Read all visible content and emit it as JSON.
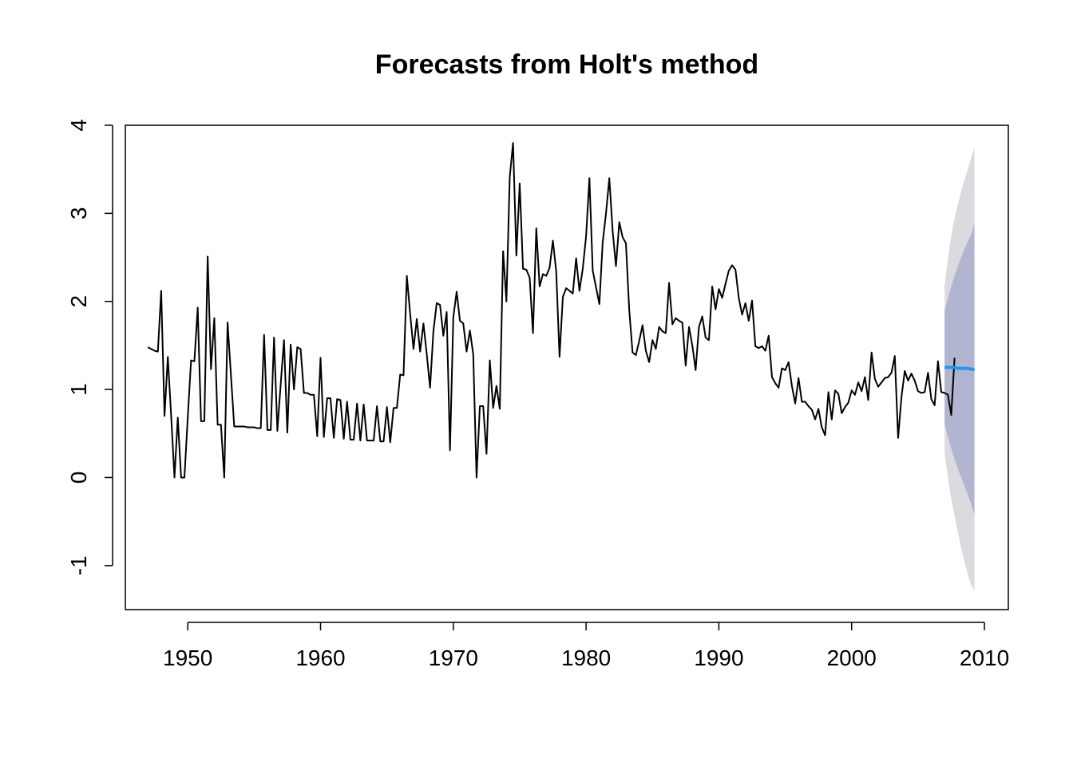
{
  "chart_data": {
    "type": "line",
    "title": "Forecasts from Holt's method",
    "xlabel": "",
    "ylabel": "",
    "xlim": [
      1945.3,
      2011.8
    ],
    "ylim": [
      -1.5,
      4.0
    ],
    "x_ticks": [
      1950,
      1960,
      1970,
      1980,
      1990,
      2000,
      2010
    ],
    "y_ticks": [
      -1,
      0,
      1,
      2,
      3,
      4
    ],
    "grid": false,
    "series": [
      {
        "role": "observed",
        "color": "#000000",
        "start": 1947.0,
        "frequency": 4,
        "values": [
          1.48,
          1.46,
          1.44,
          1.43,
          2.12,
          0.7,
          1.37,
          0.7,
          0.0,
          0.68,
          0.0,
          0.0,
          0.68,
          1.33,
          1.32,
          1.93,
          0.64,
          0.64,
          2.51,
          1.23,
          1.81,
          0.6,
          0.6,
          0.0,
          1.76,
          1.17,
          0.58,
          0.58,
          0.58,
          0.58,
          0.57,
          0.57,
          0.57,
          0.56,
          0.56,
          1.62,
          0.54,
          0.54,
          1.59,
          0.53,
          1.06,
          1.56,
          0.51,
          1.51,
          1.0,
          1.48,
          1.46,
          0.96,
          0.96,
          0.94,
          0.94,
          0.47,
          1.36,
          0.46,
          0.9,
          0.9,
          0.45,
          0.89,
          0.88,
          0.44,
          0.86,
          0.43,
          0.43,
          0.84,
          0.42,
          0.83,
          0.42,
          0.42,
          0.42,
          0.81,
          0.41,
          0.41,
          0.8,
          0.4,
          0.79,
          0.79,
          1.17,
          1.16,
          2.29,
          1.86,
          1.46,
          1.8,
          1.43,
          1.75,
          1.4,
          1.02,
          1.66,
          1.98,
          1.96,
          1.61,
          1.88,
          0.31,
          1.82,
          2.11,
          1.78,
          1.75,
          1.43,
          1.67,
          1.4,
          0.0,
          0.81,
          0.81,
          0.27,
          1.33,
          0.79,
          1.04,
          0.78,
          2.57,
          2.0,
          3.41,
          3.8,
          2.52,
          3.34,
          2.37,
          2.36,
          2.27,
          1.64,
          2.83,
          2.17,
          2.31,
          2.29,
          2.38,
          2.69,
          2.34,
          1.37,
          2.05,
          2.15,
          2.12,
          2.09,
          2.49,
          2.12,
          2.37,
          2.74,
          3.4,
          2.35,
          2.16,
          1.97,
          2.67,
          3.0,
          3.4,
          2.8,
          2.4,
          2.9,
          2.73,
          2.66,
          1.9,
          1.42,
          1.39,
          1.55,
          1.73,
          1.44,
          1.31,
          1.56,
          1.46,
          1.71,
          1.66,
          1.64,
          2.21,
          1.74,
          1.81,
          1.78,
          1.76,
          1.27,
          1.71,
          1.5,
          1.22,
          1.71,
          1.83,
          1.59,
          1.56,
          2.17,
          1.91,
          2.14,
          2.04,
          2.2,
          2.35,
          2.41,
          2.36,
          2.04,
          1.85,
          1.98,
          1.78,
          2.01,
          1.49,
          1.47,
          1.49,
          1.44,
          1.61,
          1.14,
          1.07,
          1.02,
          1.24,
          1.22,
          1.31,
          1.04,
          0.84,
          1.13,
          0.86,
          0.86,
          0.81,
          0.77,
          0.66,
          0.78,
          0.57,
          0.48,
          0.97,
          0.66,
          0.99,
          0.95,
          0.73,
          0.8,
          0.85,
          0.99,
          0.94,
          1.08,
          0.98,
          1.14,
          0.88,
          1.42,
          1.12,
          1.03,
          1.08,
          1.13,
          1.14,
          1.19,
          1.38,
          0.45,
          0.91,
          1.21,
          1.1,
          1.18,
          1.1,
          0.98,
          0.96,
          0.97,
          1.19,
          0.89,
          0.82,
          1.32,
          0.97,
          0.96,
          0.94,
          0.71,
          1.36
        ]
      },
      {
        "role": "forecast",
        "color": "#2196F3",
        "x": [
          2007.0,
          2007.25,
          2007.5,
          2007.75,
          2008.0,
          2008.25,
          2008.5,
          2008.75,
          2009.0,
          2009.25
        ],
        "values": [
          1.25,
          1.25,
          1.25,
          1.25,
          1.24,
          1.24,
          1.24,
          1.24,
          1.23,
          1.23
        ],
        "band_80": {
          "color": "#B1B5CF",
          "lower": [
            0.61,
            0.46,
            0.33,
            0.21,
            0.1,
            0.0,
            -0.1,
            -0.2,
            -0.3,
            -0.42
          ],
          "upper": [
            1.89,
            2.04,
            2.17,
            2.29,
            2.4,
            2.5,
            2.6,
            2.68,
            2.76,
            2.88
          ]
        },
        "band_95": {
          "color": "#DBDBDF",
          "lower": [
            0.27,
            0.0,
            -0.24,
            -0.44,
            -0.62,
            -0.8,
            -0.96,
            -1.1,
            -1.22,
            -1.29
          ],
          "upper": [
            2.17,
            2.49,
            2.74,
            2.94,
            3.1,
            3.25,
            3.38,
            3.5,
            3.63,
            3.75
          ]
        }
      }
    ]
  }
}
